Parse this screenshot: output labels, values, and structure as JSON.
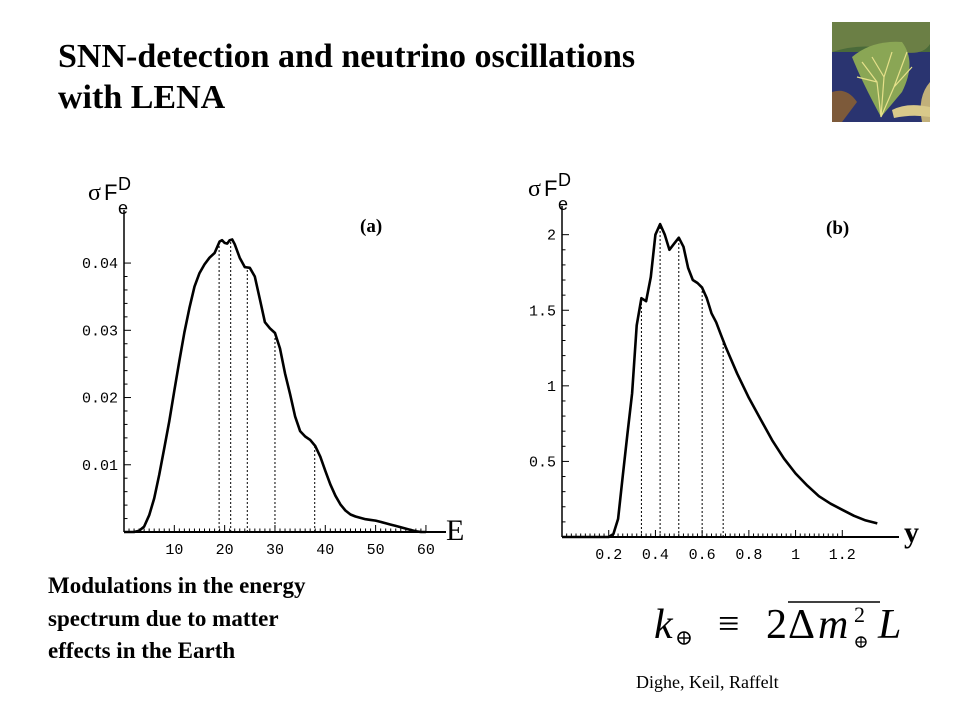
{
  "slide": {
    "title_lines": [
      "SNN-detection and neutrino oscillations",
      "with LENA"
    ],
    "caption_lines": [
      "Modulations in the energy",
      "spectrum due to matter",
      "effects in the Earth"
    ],
    "credit": "Dighe, Keil, Raffelt",
    "formula": {
      "lhs_base": "k",
      "equiv": "≡",
      "two": "2",
      "delta": "Δ",
      "m": "m",
      "exp": "2",
      "L": "L"
    },
    "colors": {
      "background": "#ffffff",
      "ink": "#000000"
    },
    "thumbnail_icon": "satellite-image-river-delta"
  },
  "chart_data": [
    {
      "type": "line",
      "panel_label": "(a)",
      "y_label": {
        "sigma": "σ",
        "F": "F",
        "sub": "e",
        "sup": "D"
      },
      "x_label": "E",
      "xlim": [
        0,
        62
      ],
      "ylim": [
        0,
        0.047
      ],
      "x_ticks": [
        10,
        20,
        30,
        40,
        50,
        60
      ],
      "x_tick_labels": [
        "10",
        "20",
        "30",
        "40",
        "50",
        "60"
      ],
      "y_ticks": [
        0.01,
        0.02,
        0.03,
        0.04
      ],
      "y_tick_labels": [
        "0.01",
        "0.02",
        "0.03",
        "0.04"
      ],
      "grid": false,
      "markers": [
        18.9,
        21.2,
        24.5,
        30.0,
        37.9
      ],
      "series": [
        {
          "x": [
            0,
            2,
            3,
            4,
            5,
            6,
            7,
            8,
            9,
            10,
            11,
            12,
            13,
            14,
            15,
            16,
            17,
            18,
            19,
            19.5,
            20,
            20.5,
            21,
            21.5,
            22,
            23,
            24,
            25,
            26,
            27,
            28,
            29,
            30,
            31,
            32,
            33,
            34,
            35,
            36,
            37,
            38,
            39,
            40,
            41,
            42,
            43,
            44,
            45,
            46,
            47,
            48,
            49,
            50,
            51,
            52,
            53,
            54,
            55,
            56,
            57,
            58,
            59,
            60
          ],
          "y": [
            0,
            0,
            0.0002,
            0.0008,
            0.0025,
            0.005,
            0.0085,
            0.0125,
            0.0165,
            0.021,
            0.0255,
            0.0297,
            0.0333,
            0.0365,
            0.0385,
            0.0398,
            0.0408,
            0.0415,
            0.0432,
            0.0434,
            0.043,
            0.0429,
            0.0434,
            0.0435,
            0.0428,
            0.0408,
            0.0394,
            0.0393,
            0.038,
            0.0346,
            0.0312,
            0.0303,
            0.0296,
            0.0273,
            0.0236,
            0.0205,
            0.0172,
            0.015,
            0.0142,
            0.0137,
            0.0128,
            0.0112,
            0.0091,
            0.0071,
            0.0054,
            0.0041,
            0.0032,
            0.0026,
            0.0023,
            0.0021,
            0.0019,
            0.0018,
            0.0017,
            0.0015,
            0.0013,
            0.0011,
            0.0009,
            0.0007,
            0.0005,
            0.0003,
            0.0001,
            0,
            0
          ]
        }
      ]
    },
    {
      "type": "line",
      "panel_label": "(b)",
      "y_label": {
        "sigma": "σ",
        "F": "F",
        "sub": "e",
        "sup": "D"
      },
      "x_label": "y",
      "xlim": [
        0,
        1.4
      ],
      "ylim": [
        0,
        2.15
      ],
      "x_ticks": [
        0.2,
        0.4,
        0.6,
        0.8,
        1.0,
        1.2
      ],
      "x_tick_labels": [
        "0.2",
        "0.4",
        "0.6",
        "0.8",
        "1",
        "1.2"
      ],
      "y_ticks": [
        0.5,
        1.0,
        1.5,
        2.0
      ],
      "y_tick_labels": [
        "0.5",
        "1",
        "1.5",
        "2"
      ],
      "grid": false,
      "markers": [
        0.34,
        0.42,
        0.5,
        0.6,
        0.69
      ],
      "series": [
        {
          "x": [
            0,
            0.2,
            0.22,
            0.24,
            0.26,
            0.28,
            0.3,
            0.32,
            0.34,
            0.36,
            0.38,
            0.4,
            0.42,
            0.44,
            0.46,
            0.48,
            0.5,
            0.52,
            0.54,
            0.56,
            0.58,
            0.6,
            0.62,
            0.64,
            0.66,
            0.68,
            0.7,
            0.75,
            0.8,
            0.85,
            0.9,
            0.95,
            1.0,
            1.05,
            1.1,
            1.15,
            1.2,
            1.25,
            1.3,
            1.35
          ],
          "y": [
            0,
            0,
            0.02,
            0.12,
            0.4,
            0.68,
            0.95,
            1.4,
            1.58,
            1.56,
            1.72,
            2.0,
            2.07,
            2.0,
            1.9,
            1.94,
            1.98,
            1.92,
            1.78,
            1.7,
            1.68,
            1.65,
            1.58,
            1.48,
            1.42,
            1.34,
            1.26,
            1.08,
            0.92,
            0.78,
            0.64,
            0.52,
            0.42,
            0.34,
            0.27,
            0.22,
            0.18,
            0.14,
            0.11,
            0.09
          ]
        }
      ]
    }
  ]
}
